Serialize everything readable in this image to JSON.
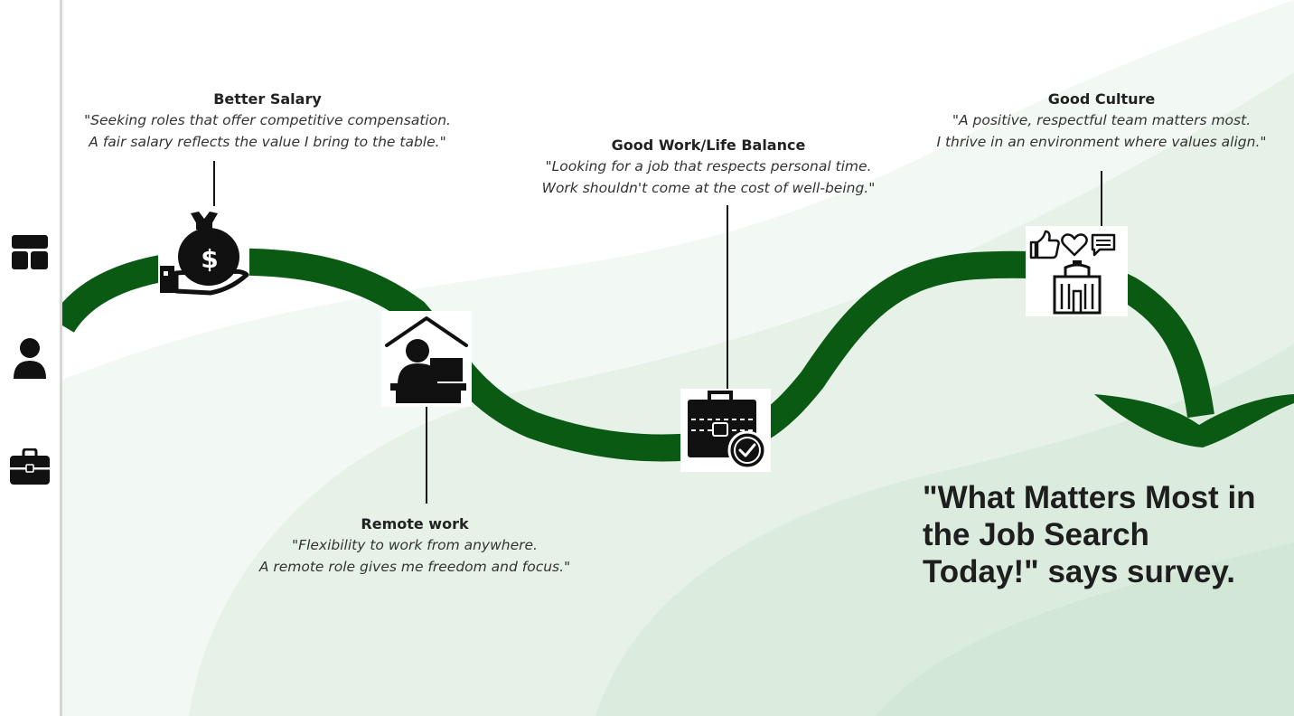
{
  "sidebar": {
    "items": [
      {
        "icon": "dashboard-icon"
      },
      {
        "icon": "user-icon"
      },
      {
        "icon": "briefcase-icon"
      }
    ]
  },
  "milestones": [
    {
      "title": "Better Salary",
      "line1": "\"Seeking roles that offer competitive compensation.",
      "line2": "A fair salary reflects the value I bring to the table.\"",
      "icon": "money-bag-hand-icon"
    },
    {
      "title": "Remote work",
      "line1": "\"Flexibility to work from anywhere.",
      "line2": "A remote role gives me freedom and focus.\"",
      "icon": "home-office-icon"
    },
    {
      "title": "Good Work/Life Balance",
      "line1": "\"Looking for a job that respects personal time.",
      "line2": "Work shouldn't come at the cost of well-being.\"",
      "icon": "briefcase-check-icon"
    },
    {
      "title": "Good Culture",
      "line1": "\"A positive, respectful team matters most.",
      "line2": "I thrive in an environment where values align.\"",
      "icon": "culture-building-icon"
    }
  ],
  "headline": {
    "line1": "\"What Matters Most in",
    "line2": "the Job Search",
    "line3": "Today!\" says survey."
  },
  "colors": {
    "path": "#0b5a14",
    "background_tint": "#e8f3ea"
  }
}
